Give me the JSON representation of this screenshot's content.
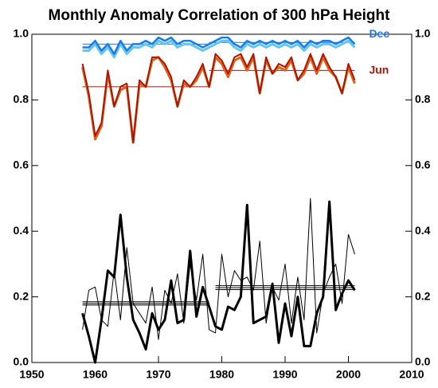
{
  "chart_data": {
    "type": "line",
    "title": "Monthly Anomaly Correlation of 300 hPa Height",
    "x": [
      1958,
      1959,
      1960,
      1961,
      1962,
      1963,
      1964,
      1965,
      1966,
      1967,
      1968,
      1969,
      1970,
      1971,
      1972,
      1973,
      1974,
      1975,
      1976,
      1977,
      1978,
      1979,
      1980,
      1981,
      1982,
      1983,
      1984,
      1985,
      1986,
      1987,
      1988,
      1989,
      1990,
      1991,
      1992,
      1993,
      1994,
      1995,
      1996,
      1997,
      1998,
      1999,
      2000,
      2001
    ],
    "series": [
      {
        "color": "#5cc8f5",
        "width": 3,
        "values": [
          0.95,
          0.95,
          0.97,
          0.94,
          0.96,
          0.93,
          0.97,
          0.94,
          0.96,
          0.96,
          0.97,
          0.96,
          0.98,
          0.97,
          0.98,
          0.96,
          0.97,
          0.97,
          0.96,
          0.95,
          0.96,
          0.97,
          0.98,
          0.98,
          0.96,
          0.95,
          0.97,
          0.96,
          0.97,
          0.96,
          0.97,
          0.96,
          0.97,
          0.96,
          0.97,
          0.95,
          0.97,
          0.96,
          0.97,
          0.97,
          0.96,
          0.97,
          0.98,
          0.96
        ]
      },
      {
        "name": "Dec",
        "color": "#1e78e6",
        "width": 2.5,
        "values": [
          0.96,
          0.96,
          0.98,
          0.95,
          0.97,
          0.94,
          0.98,
          0.95,
          0.97,
          0.97,
          0.98,
          0.97,
          0.99,
          0.98,
          0.99,
          0.97,
          0.98,
          0.98,
          0.97,
          0.96,
          0.97,
          0.98,
          0.99,
          0.99,
          0.97,
          0.96,
          0.98,
          0.97,
          0.98,
          0.97,
          0.98,
          0.97,
          0.98,
          0.97,
          0.98,
          0.96,
          0.98,
          0.97,
          0.98,
          0.98,
          0.97,
          0.98,
          0.99,
          0.97
        ]
      },
      {
        "color": "#e8600f",
        "width": 3,
        "values": [
          0.9,
          0.81,
          0.68,
          0.72,
          0.88,
          0.78,
          0.83,
          0.84,
          0.67,
          0.85,
          0.84,
          0.92,
          0.93,
          0.9,
          0.86,
          0.78,
          0.85,
          0.84,
          0.86,
          0.9,
          0.84,
          0.93,
          0.91,
          0.87,
          0.92,
          0.93,
          0.89,
          0.93,
          0.82,
          0.92,
          0.88,
          0.9,
          0.89,
          0.92,
          0.86,
          0.88,
          0.93,
          0.88,
          0.93,
          0.89,
          0.87,
          0.82,
          0.9,
          0.85
        ]
      },
      {
        "name": "Jun",
        "color": "#a8160a",
        "width": 2,
        "values": [
          0.91,
          0.82,
          0.69,
          0.73,
          0.89,
          0.78,
          0.84,
          0.85,
          0.67,
          0.86,
          0.84,
          0.93,
          0.93,
          0.91,
          0.87,
          0.78,
          0.86,
          0.84,
          0.87,
          0.91,
          0.84,
          0.94,
          0.92,
          0.88,
          0.93,
          0.94,
          0.9,
          0.94,
          0.82,
          0.93,
          0.88,
          0.91,
          0.9,
          0.93,
          0.86,
          0.89,
          0.94,
          0.89,
          0.94,
          0.9,
          0.87,
          0.82,
          0.91,
          0.86
        ]
      },
      {
        "color": "#000000",
        "width": 1,
        "values": [
          0.1,
          0.22,
          0.23,
          0.13,
          0.11,
          0.28,
          0.13,
          0.35,
          0.18,
          0.15,
          0.12,
          0.23,
          0.07,
          0.22,
          0.18,
          0.27,
          0.12,
          0.3,
          0.19,
          0.33,
          0.1,
          0.09,
          0.33,
          0.2,
          0.28,
          0.25,
          0.26,
          0.22,
          0.37,
          0.12,
          0.23,
          0.19,
          0.3,
          0.12,
          0.26,
          0.13,
          0.5,
          0.09,
          0.21,
          0.26,
          0.3,
          0.18,
          0.39,
          0.33
        ]
      },
      {
        "color": "#000000",
        "width": 3,
        "values": [
          0.15,
          0.08,
          0.0,
          0.13,
          0.28,
          0.26,
          0.45,
          0.26,
          0.13,
          0.09,
          0.04,
          0.15,
          0.1,
          0.13,
          0.25,
          0.12,
          0.13,
          0.34,
          0.14,
          0.23,
          0.17,
          0.11,
          0.1,
          0.17,
          0.16,
          0.2,
          0.48,
          0.12,
          0.13,
          0.14,
          0.24,
          0.06,
          0.18,
          0.08,
          0.2,
          0.05,
          0.05,
          0.15,
          0.2,
          0.49,
          0.16,
          0.21,
          0.25,
          0.22
        ]
      }
    ],
    "reference_lines": [
      {
        "x": [
          1958,
          1978
        ],
        "y": 0.97,
        "color": "#1e78e6"
      },
      {
        "x": [
          1978,
          2001
        ],
        "y": 0.975,
        "color": "#1e78e6"
      },
      {
        "x": [
          1958,
          1978
        ],
        "y": 0.84,
        "color": "#a8160a"
      },
      {
        "x": [
          1978,
          2001
        ],
        "y": 0.89,
        "color": "#a8160a"
      },
      {
        "x": [
          1958,
          1978
        ],
        "y": 0.175,
        "color": "#000000"
      },
      {
        "x": [
          1958,
          1978
        ],
        "y": 0.18,
        "color": "#000000"
      },
      {
        "x": [
          1958,
          1978
        ],
        "y": 0.185,
        "color": "#000000"
      },
      {
        "x": [
          1979,
          2001
        ],
        "y": 0.222,
        "color": "#000000"
      },
      {
        "x": [
          1979,
          2001
        ],
        "y": 0.228,
        "color": "#000000"
      },
      {
        "x": [
          1979,
          2001
        ],
        "y": 0.234,
        "color": "#000000"
      }
    ],
    "xlim": [
      1950,
      2010
    ],
    "xticks": [
      1950,
      1960,
      1970,
      1980,
      1990,
      2000,
      2010
    ],
    "ylim": [
      0,
      1
    ],
    "yticks": [
      {
        "value": 0,
        "label": "0.0"
      },
      0.2,
      0.4,
      0.6,
      0.8,
      {
        "value": 1,
        "label": "1.0"
      }
    ]
  }
}
